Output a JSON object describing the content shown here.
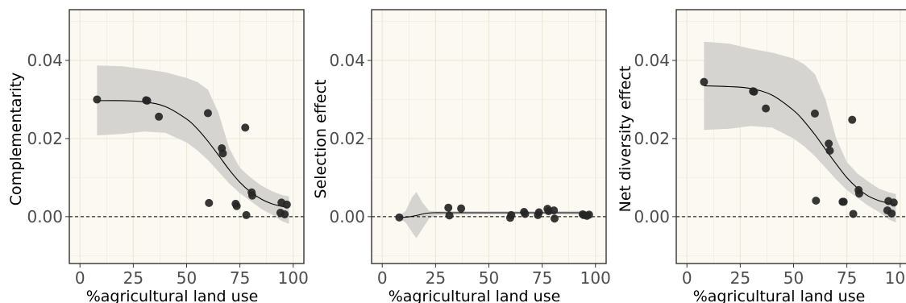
{
  "colors": {
    "panel_bg": "#fbf9f1",
    "grid": "#ece9dc",
    "ribbon": "#d3d2cf",
    "point": "#262626",
    "line": "#000000",
    "zero_line": "#000000"
  },
  "chart_data": [
    {
      "type": "scatter",
      "xlabel": "%agricultural land use",
      "ylabel": "Complementarity",
      "xlim": [
        -5,
        105
      ],
      "ylim": [
        -0.012,
        0.053
      ],
      "xticks": [
        0,
        25,
        50,
        75,
        100
      ],
      "yticks": [
        0.0,
        0.02,
        0.04
      ],
      "ytick_labels": [
        "0.00",
        "0.02",
        "0.04"
      ],
      "reference_line": {
        "y": 0,
        "style": "dashed"
      },
      "points": [
        [
          8,
          0.03
        ],
        [
          31,
          0.0298
        ],
        [
          31.5,
          0.0297
        ],
        [
          37,
          0.0256
        ],
        [
          60,
          0.0265
        ],
        [
          60.5,
          0.0035
        ],
        [
          66.5,
          0.0175
        ],
        [
          67,
          0.0162
        ],
        [
          73,
          0.0033
        ],
        [
          73.5,
          0.0027
        ],
        [
          77.5,
          0.0228
        ],
        [
          78,
          0.0004
        ],
        [
          80.5,
          0.0062
        ],
        [
          80.8,
          0.0054
        ],
        [
          94,
          0.001
        ],
        [
          94.5,
          0.0036
        ],
        [
          96,
          0.0006
        ],
        [
          97,
          0.0031
        ]
      ],
      "fit": {
        "x": [
          8,
          20,
          30,
          40,
          50,
          55,
          60,
          65,
          70,
          75,
          80,
          85,
          90,
          95,
          98
        ],
        "y": [
          0.0297,
          0.0297,
          0.0294,
          0.0282,
          0.025,
          0.0225,
          0.0193,
          0.0157,
          0.012,
          0.0088,
          0.0063,
          0.0045,
          0.0033,
          0.0026,
          0.0023
        ]
      },
      "ribbon": {
        "x": [
          8,
          20,
          30,
          40,
          50,
          55,
          60,
          65,
          70,
          75,
          80,
          85,
          90,
          95,
          98
        ],
        "lower": [
          0.0208,
          0.0212,
          0.0218,
          0.0215,
          0.019,
          0.017,
          0.0145,
          0.0115,
          0.0085,
          0.006,
          0.004,
          0.002,
          0.0005,
          -0.0012,
          -0.0018
        ],
        "upper": [
          0.0387,
          0.0385,
          0.0378,
          0.037,
          0.0355,
          0.0345,
          0.0325,
          0.0265,
          0.0175,
          0.0125,
          0.01,
          0.008,
          0.0065,
          0.0055,
          0.0052
        ]
      }
    },
    {
      "type": "scatter",
      "xlabel": "%agricultural land use",
      "ylabel": "Selection effect",
      "xlim": [
        -5,
        105
      ],
      "ylim": [
        -0.012,
        0.053
      ],
      "xticks": [
        0,
        25,
        50,
        75,
        100
      ],
      "yticks": [
        0.0,
        0.02,
        0.04
      ],
      "ytick_labels": [
        "0.00",
        "0.02",
        "0.04"
      ],
      "reference_line": {
        "y": 0,
        "style": "dashed"
      },
      "points": [
        [
          8,
          -0.0002
        ],
        [
          31,
          0.0023
        ],
        [
          31.5,
          0.0003
        ],
        [
          37,
          0.0021
        ],
        [
          60,
          -0.0003
        ],
        [
          60.5,
          0.0004
        ],
        [
          66.5,
          0.0012
        ],
        [
          67,
          0.0007
        ],
        [
          73,
          0.0004
        ],
        [
          73.5,
          0.0011
        ],
        [
          77.5,
          0.002
        ],
        [
          78,
          0.0014
        ],
        [
          80.5,
          0.0016
        ],
        [
          80.8,
          -0.0005
        ],
        [
          94,
          0.0006
        ],
        [
          94.5,
          0.0004
        ],
        [
          96,
          0.0002
        ],
        [
          97,
          0.0005
        ]
      ],
      "fit": {
        "x": [
          8,
          12,
          16,
          20,
          24,
          30,
          50,
          75,
          98
        ],
        "y": [
          -0.0002,
          -0.0001,
          0.0003,
          0.0008,
          0.001,
          0.001,
          0.001,
          0.001,
          0.001
        ]
      },
      "ribbon": {
        "x": [
          8,
          11,
          14,
          16,
          19,
          22,
          25,
          30,
          50,
          75,
          98
        ],
        "lower": [
          -0.0005,
          -0.0015,
          -0.004,
          -0.0055,
          -0.003,
          -0.0005,
          0.0003,
          0.0005,
          0.0006,
          0.0006,
          0.0005
        ],
        "upper": [
          0.0002,
          0.0015,
          0.005,
          0.0063,
          0.0035,
          0.0015,
          0.0014,
          0.0014,
          0.0014,
          0.0014,
          0.0015
        ]
      }
    },
    {
      "type": "scatter",
      "xlabel": "%agricultural land use",
      "ylabel": "Net diversity effect",
      "xlim": [
        -5,
        105
      ],
      "ylim": [
        -0.012,
        0.053
      ],
      "xticks": [
        0,
        25,
        50,
        75,
        100
      ],
      "yticks": [
        0.0,
        0.02,
        0.04
      ],
      "ytick_labels": [
        "0.00",
        "0.02",
        "0.04"
      ],
      "reference_line": {
        "y": 0,
        "style": "dashed"
      },
      "points": [
        [
          8,
          0.0345
        ],
        [
          31,
          0.0321
        ],
        [
          31.5,
          0.032
        ],
        [
          37,
          0.0277
        ],
        [
          60,
          0.0264
        ],
        [
          60.5,
          0.0041
        ],
        [
          66.5,
          0.0187
        ],
        [
          67,
          0.0169
        ],
        [
          73,
          0.0038
        ],
        [
          73.5,
          0.0038
        ],
        [
          77.5,
          0.0248
        ],
        [
          78,
          0.0007
        ],
        [
          80.5,
          0.0068
        ],
        [
          80.8,
          0.0059
        ],
        [
          94,
          0.0016
        ],
        [
          94.5,
          0.004
        ],
        [
          96,
          0.0008
        ],
        [
          97,
          0.0036
        ]
      ],
      "fit": {
        "x": [
          8,
          20,
          30,
          40,
          50,
          55,
          60,
          65,
          70,
          75,
          80,
          85,
          90,
          95,
          98
        ],
        "y": [
          0.0335,
          0.0333,
          0.0328,
          0.0311,
          0.0272,
          0.0244,
          0.021,
          0.0172,
          0.0135,
          0.01,
          0.0073,
          0.0053,
          0.0041,
          0.0034,
          0.0031
        ]
      },
      "ribbon": {
        "x": [
          8,
          20,
          30,
          40,
          50,
          55,
          60,
          65,
          70,
          75,
          80,
          85,
          90,
          95,
          98
        ],
        "lower": [
          0.0222,
          0.0225,
          0.0232,
          0.0228,
          0.02,
          0.018,
          0.0155,
          0.0125,
          0.0095,
          0.0068,
          0.0048,
          0.0028,
          0.0012,
          -0.0008,
          -0.0015
        ],
        "upper": [
          0.0448,
          0.0443,
          0.043,
          0.042,
          0.0405,
          0.039,
          0.0365,
          0.03,
          0.02,
          0.014,
          0.011,
          0.009,
          0.0072,
          0.0062,
          0.0058
        ]
      }
    }
  ]
}
